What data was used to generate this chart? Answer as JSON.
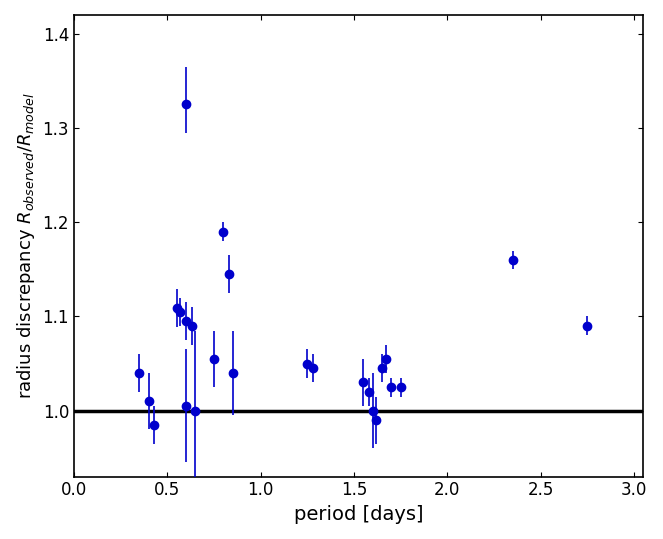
{
  "x": [
    0.35,
    0.4,
    0.43,
    0.55,
    0.57,
    0.6,
    0.6,
    0.63,
    0.65,
    0.75,
    0.8,
    0.83,
    0.85,
    1.25,
    1.28,
    1.55,
    1.58,
    1.6,
    1.62,
    1.65,
    1.67,
    1.7,
    1.75,
    2.35,
    2.75,
    0.6
  ],
  "y": [
    1.04,
    1.01,
    0.985,
    1.109,
    1.105,
    1.095,
    1.005,
    1.09,
    1.0,
    1.055,
    1.19,
    1.145,
    1.04,
    1.05,
    1.045,
    1.03,
    1.02,
    1.0,
    0.99,
    1.045,
    1.055,
    1.025,
    1.025,
    1.16,
    1.09,
    1.325
  ],
  "xerr": [
    0.01,
    0.01,
    0.01,
    0.015,
    0.015,
    0.015,
    0.015,
    0.015,
    0.015,
    0.015,
    0.01,
    0.015,
    0.015,
    0.01,
    0.01,
    0.01,
    0.01,
    0.01,
    0.01,
    0.01,
    0.01,
    0.01,
    0.01,
    0.015,
    0.01,
    0.01
  ],
  "yerr_lo": [
    0.02,
    0.03,
    0.02,
    0.02,
    0.015,
    0.02,
    0.06,
    0.02,
    0.085,
    0.03,
    0.01,
    0.02,
    0.045,
    0.015,
    0.015,
    0.025,
    0.015,
    0.04,
    0.025,
    0.015,
    0.015,
    0.01,
    0.01,
    0.01,
    0.01,
    0.03
  ],
  "yerr_hi": [
    0.02,
    0.03,
    0.02,
    0.02,
    0.015,
    0.02,
    0.06,
    0.02,
    0.085,
    0.03,
    0.01,
    0.02,
    0.045,
    0.015,
    0.015,
    0.025,
    0.015,
    0.04,
    0.025,
    0.015,
    0.015,
    0.01,
    0.01,
    0.01,
    0.01,
    0.04
  ],
  "point_color": "#0000cc",
  "line_color": "black",
  "xlabel": "period [days]",
  "ylabel": "radius discrepancy $R_{observed}/R_{model}$",
  "xlim": [
    0.15,
    3.05
  ],
  "ylim": [
    0.93,
    1.42
  ],
  "yticks": [
    1.0,
    1.1,
    1.2,
    1.3,
    1.4
  ],
  "xticks": [
    0.0,
    0.5,
    1.0,
    1.5,
    2.0,
    2.5,
    3.0
  ],
  "hline_y": 1.0
}
